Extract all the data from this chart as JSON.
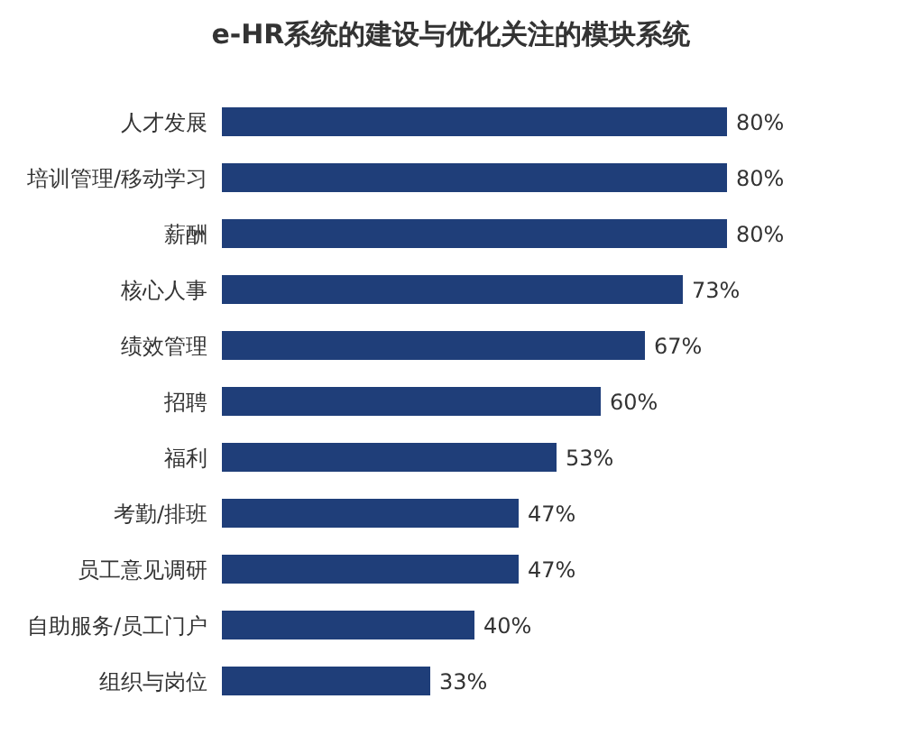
{
  "chart_data": {
    "type": "bar",
    "orientation": "horizontal",
    "title": "e-HR系统的建设与优化关注的模块系统",
    "categories": [
      "人才发展",
      "培训管理/移动学习",
      "薪酬",
      "核心人事",
      "绩效管理",
      "招聘",
      "福利",
      "考勤/排班",
      "员工意见调研",
      "自助服务/员工门户",
      "组织与岗位"
    ],
    "values": [
      80,
      80,
      80,
      73,
      67,
      60,
      53,
      47,
      47,
      40,
      33
    ],
    "value_labels": [
      "80%",
      "80%",
      "80%",
      "73%",
      "67%",
      "60%",
      "53%",
      "47%",
      "47%",
      "40%",
      "33%"
    ],
    "color": "#1f3e79"
  }
}
